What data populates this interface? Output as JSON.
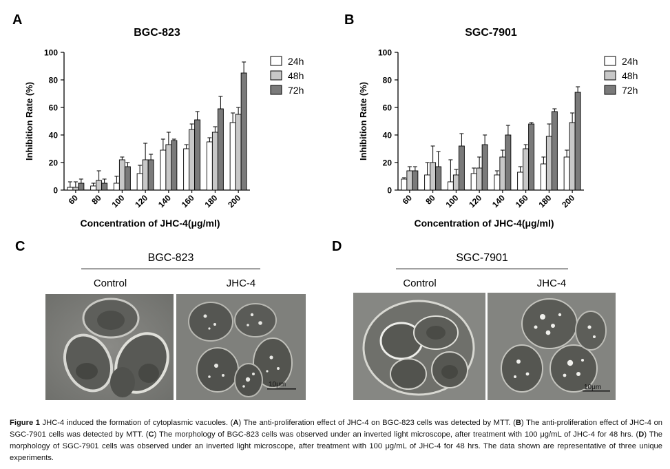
{
  "panels": {
    "a_label": "A",
    "b_label": "B",
    "c_label": "C",
    "d_label": "D"
  },
  "chart_data": [
    {
      "type": "bar",
      "panel": "A",
      "title": "BGC-823",
      "xlabel": "Concentration of JHC-4(μg/ml)",
      "ylabel": "Inhibition Rate (%)",
      "ylim": [
        0,
        100
      ],
      "yticks": [
        "0",
        "20",
        "40",
        "60",
        "80",
        "100"
      ],
      "categories": [
        "60",
        "80",
        "100",
        "120",
        "140",
        "160",
        "180",
        "200"
      ],
      "legend_position": "top-right",
      "series": [
        {
          "name": "24h",
          "color": "#ffffff",
          "values": [
            2,
            3,
            5,
            12,
            29,
            30,
            35,
            49
          ],
          "errors": [
            4,
            2,
            5,
            6,
            8,
            3,
            3,
            7
          ]
        },
        {
          "name": "48h",
          "color": "#c8c8c8",
          "values": [
            2,
            7,
            22,
            22,
            33,
            44,
            42,
            55
          ],
          "errors": [
            4,
            7,
            2,
            12,
            9,
            4,
            4,
            5
          ]
        },
        {
          "name": "72h",
          "color": "#7a7a7a",
          "values": [
            5,
            5,
            17,
            22,
            36,
            51,
            59,
            85
          ],
          "errors": [
            3,
            3,
            3,
            4,
            1,
            6,
            9,
            8
          ]
        }
      ]
    },
    {
      "type": "bar",
      "panel": "B",
      "title": "SGC-7901",
      "xlabel": "Concentration of JHC-4(μg/ml)",
      "ylabel": "Inhibition Rate (%)",
      "ylim": [
        0,
        100
      ],
      "yticks": [
        "0",
        "20",
        "40",
        "60",
        "80",
        "100"
      ],
      "categories": [
        "60",
        "80",
        "100",
        "120",
        "140",
        "160",
        "180",
        "200"
      ],
      "legend_position": "top-right",
      "series": [
        {
          "name": "24h",
          "color": "#ffffff",
          "values": [
            8,
            11,
            6,
            12,
            11,
            13,
            19,
            24
          ],
          "errors": [
            1,
            9,
            16,
            4,
            3,
            4,
            5,
            5
          ]
        },
        {
          "name": "48h",
          "color": "#c8c8c8",
          "values": [
            14,
            20,
            11,
            16,
            24,
            30,
            39,
            49
          ],
          "errors": [
            3,
            12,
            4,
            8,
            5,
            3,
            9,
            7
          ]
        },
        {
          "name": "72h",
          "color": "#7a7a7a",
          "values": [
            14,
            17,
            32,
            33,
            40,
            48,
            57,
            71
          ],
          "errors": [
            3,
            11,
            9,
            7,
            7,
            1,
            2,
            4
          ]
        }
      ]
    }
  ],
  "microscopy": {
    "c_title": "BGC-823",
    "d_title": "SGC-7901",
    "control_label": "Control",
    "treated_label": "JHC-4",
    "scale_bar": "10μm"
  },
  "caption": {
    "figure_label": "Figure 1",
    "intro": " JHC-4 induced the formation of cytoplasmic vacuoles. (",
    "a": "A",
    "a_text": ") The anti-proliferation effect of JHC-4 on BGC-823 cells was detected by MTT. (",
    "b": "B",
    "b_text": ") The anti-proliferation effect of JHC-4 on SGC-7901 cells was detected by MTT. (",
    "c": "C",
    "c_text": ") The morphology of BGC-823 cells was observed under an inverted light microscope, after treatment with 100 μg/mL of JHC-4 for 48 hrs. (",
    "d": "D",
    "d_text": ") The morphology of SGC-7901 cells was observed under an inverted light microscope, after treatment with 100 μg/mL of JHC-4 for 48 hrs. The data shown are representative of three unique experiments."
  }
}
